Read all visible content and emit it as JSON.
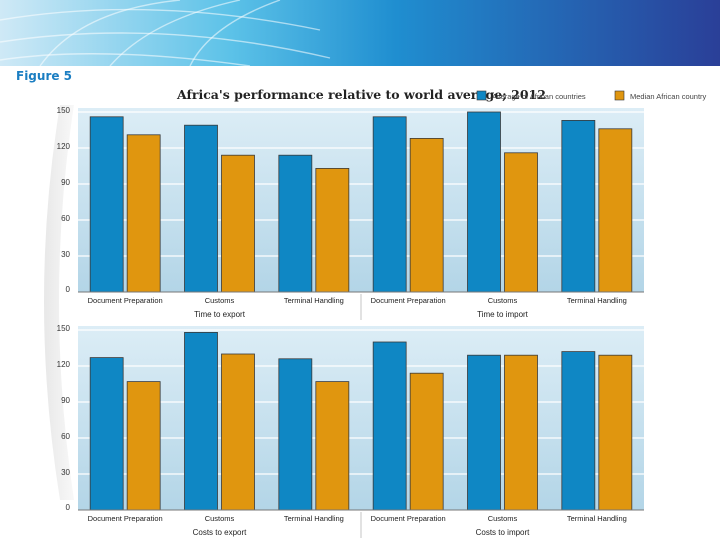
{
  "figure_label": "Figure 5",
  "colors": {
    "african_average": "#0f87c4",
    "african_median": "#e0960f",
    "panel_top": "#dcedf6",
    "panel_bottom": "#b3d5e7"
  },
  "chart_data": [
    {
      "type": "bar",
      "title": "Africa's performance relative to world average; 2012",
      "legend": [
        "Average of African countries",
        "Median African country"
      ],
      "categories": [
        "Document Preparation",
        "Customs",
        "Terminal Handling",
        "Document Preparation",
        "Customs",
        "Terminal Handling"
      ],
      "groups": [
        {
          "label": "Time to export"
        },
        {
          "label": "Time to import"
        }
      ],
      "series": [
        {
          "name": "Average of African countries",
          "values": [
            146,
            139,
            114,
            146,
            150,
            143
          ]
        },
        {
          "name": "Median African country",
          "values": [
            131,
            114,
            103,
            128,
            116,
            136
          ]
        }
      ],
      "yticks": [
        0,
        30,
        60,
        90,
        120,
        150
      ],
      "ylim": [
        0,
        150
      ],
      "grid": true
    },
    {
      "type": "bar",
      "title": "",
      "categories": [
        "Document Preparation",
        "Customs",
        "Terminal Handling",
        "Document Preparation",
        "Customs",
        "Terminal Handling"
      ],
      "groups": [
        {
          "label": "Costs to export"
        },
        {
          "label": "Costs to import"
        }
      ],
      "series": [
        {
          "name": "Average of African countries",
          "values": [
            127,
            148,
            126,
            140,
            129,
            132
          ]
        },
        {
          "name": "Median African country",
          "values": [
            107,
            130,
            107,
            114,
            129,
            129
          ]
        }
      ],
      "yticks": [
        0,
        30,
        60,
        90,
        120,
        150
      ],
      "ylim": [
        0,
        150
      ],
      "grid": true
    }
  ]
}
